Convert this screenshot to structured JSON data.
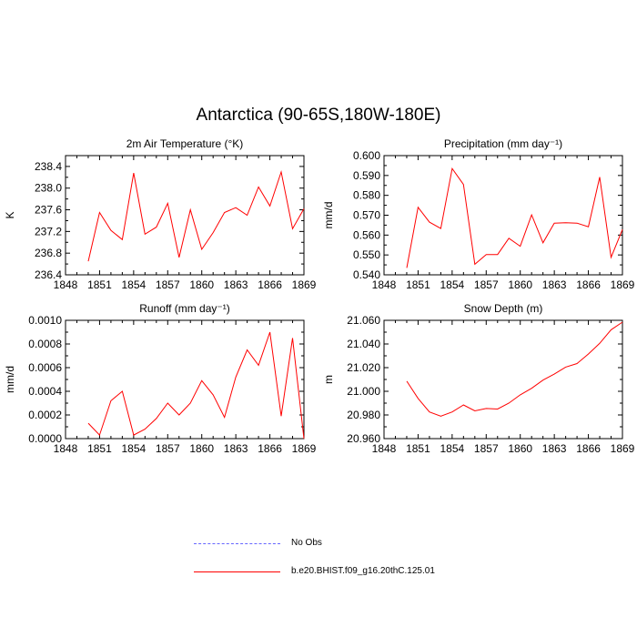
{
  "title": "Antarctica (90-65S,180W-180E)",
  "colors": {
    "model": "#ff0000",
    "obs": "#6666ff",
    "axis": "#000000"
  },
  "legend": [
    {
      "label": "No Obs",
      "style": "dashed",
      "color": "#6666ff"
    },
    {
      "label": "b.e20.BHIST.f09_g16.20thC.125.01",
      "style": "solid",
      "color": "#ff0000"
    }
  ],
  "chart_data": [
    {
      "type": "line",
      "title": "2m Air Temperature (°K)",
      "ylabel": "K",
      "xlim": [
        1848,
        1869
      ],
      "xticks": [
        "1848",
        "1851",
        "1854",
        "1857",
        "1860",
        "1863",
        "1866",
        "1869"
      ],
      "ylim": [
        236.4,
        238.6
      ],
      "yticks": [
        "236.4",
        "236.8",
        "237.2",
        "237.6",
        "238.0",
        "238.4"
      ],
      "series": [
        {
          "x": [
            1850,
            1851,
            1852,
            1853,
            1854,
            1855,
            1856,
            1857,
            1858,
            1859,
            1860,
            1861,
            1862,
            1863,
            1864,
            1865,
            1866,
            1867,
            1868,
            1869
          ],
          "y": [
            236.65,
            237.55,
            237.22,
            237.05,
            238.28,
            237.15,
            237.28,
            237.72,
            236.72,
            237.6,
            236.87,
            237.18,
            237.55,
            237.64,
            237.5,
            238.02,
            237.67,
            238.3,
            237.25,
            237.62
          ]
        }
      ]
    },
    {
      "type": "line",
      "title": "Precipitation (mm day⁻¹)",
      "ylabel": "mm/d",
      "xlim": [
        1848,
        1869
      ],
      "xticks": [
        "1848",
        "1851",
        "1854",
        "1857",
        "1860",
        "1863",
        "1866",
        "1869"
      ],
      "ylim": [
        0.54,
        0.6
      ],
      "yticks": [
        "0.540",
        "0.550",
        "0.560",
        "0.570",
        "0.580",
        "0.590",
        "0.600"
      ],
      "series": [
        {
          "x": [
            1850,
            1851,
            1852,
            1853,
            1854,
            1855,
            1856,
            1857,
            1858,
            1859,
            1860,
            1861,
            1862,
            1863,
            1864,
            1865,
            1866,
            1867,
            1868,
            1869
          ],
          "y": [
            0.5435,
            0.574,
            0.5665,
            0.5633,
            0.5935,
            0.5855,
            0.5453,
            0.5502,
            0.5502,
            0.5584,
            0.5544,
            0.5702,
            0.5561,
            0.566,
            0.5662,
            0.566,
            0.5642,
            0.5892,
            0.5488,
            0.5628
          ]
        }
      ]
    },
    {
      "type": "line",
      "title": "Runoff (mm day⁻¹)",
      "ylabel": "mm/d",
      "xlim": [
        1848,
        1869
      ],
      "xticks": [
        "1848",
        "1851",
        "1854",
        "1857",
        "1860",
        "1863",
        "1866",
        "1869"
      ],
      "ylim": [
        0,
        0.001
      ],
      "yticks": [
        "0.0000",
        "0.0002",
        "0.0004",
        "0.0006",
        "0.0008",
        "0.0010"
      ],
      "series": [
        {
          "x": [
            1850,
            1851,
            1852,
            1853,
            1854,
            1855,
            1856,
            1857,
            1858,
            1859,
            1860,
            1861,
            1862,
            1863,
            1864,
            1865,
            1866,
            1867,
            1868,
            1869
          ],
          "y": [
            0.00013,
            3e-05,
            0.00032,
            0.0004,
            3e-05,
            8e-05,
            0.00017,
            0.0003,
            0.0002,
            0.0003,
            0.00049,
            0.00037,
            0.00018,
            0.00052,
            0.00075,
            0.00062,
            0.0009,
            0.00019,
            0.00085,
            0.0
          ]
        }
      ]
    },
    {
      "type": "line",
      "title": "Snow Depth (m)",
      "ylabel": "m",
      "xlim": [
        1848,
        1869
      ],
      "xticks": [
        "1848",
        "1851",
        "1854",
        "1857",
        "1860",
        "1863",
        "1866",
        "1869"
      ],
      "ylim": [
        20.96,
        21.06
      ],
      "yticks": [
        "20.960",
        "20.980",
        "21.000",
        "21.020",
        "21.040",
        "21.060"
      ],
      "series": [
        {
          "x": [
            1850,
            1851,
            1852,
            1853,
            1854,
            1855,
            1856,
            1857,
            1858,
            1859,
            1860,
            1861,
            1862,
            1863,
            1864,
            1865,
            1866,
            1867,
            1868,
            1869
          ],
          "y": [
            21.0085,
            20.994,
            20.9825,
            20.979,
            20.9825,
            20.9885,
            20.9835,
            20.9855,
            20.985,
            20.99,
            20.997,
            21.0025,
            21.0095,
            21.0145,
            21.0205,
            21.0235,
            21.0315,
            21.0405,
            21.052,
            21.0585
          ]
        }
      ]
    }
  ]
}
